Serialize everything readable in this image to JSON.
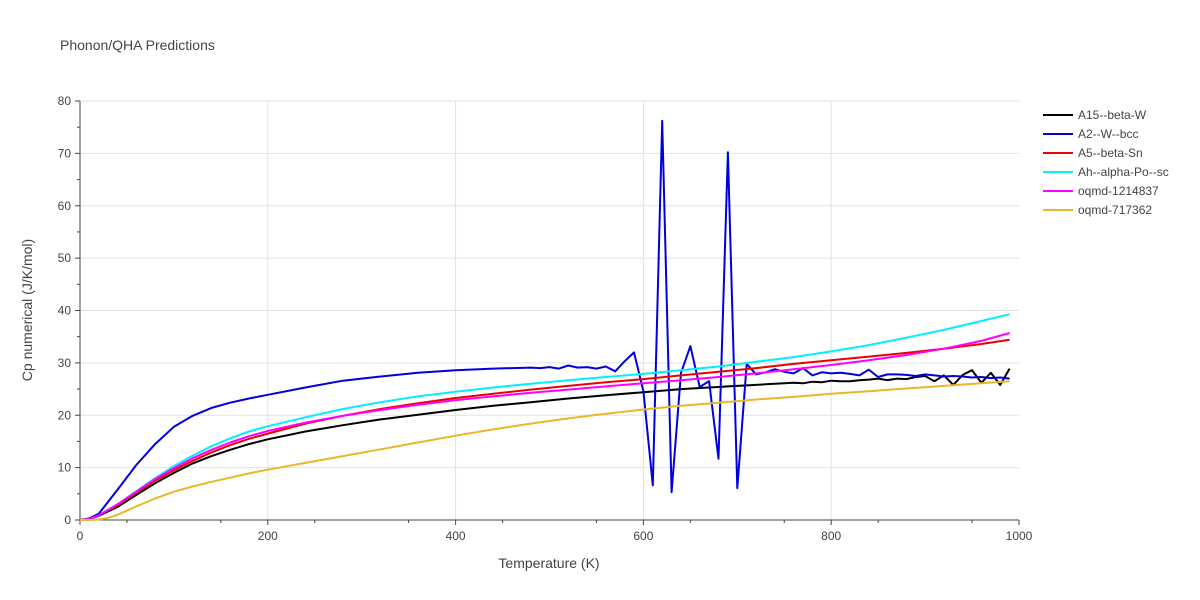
{
  "chart_data": {
    "type": "line",
    "title": "Phonon/QHA Predictions",
    "xlabel": "Temperature (K)",
    "ylabel": "Cp numerical (J/K/mol)",
    "xlim": [
      0,
      1000
    ],
    "ylim": [
      0,
      80
    ],
    "xticks": [
      0,
      200,
      400,
      600,
      800,
      1000
    ],
    "yticks": [
      0,
      10,
      20,
      30,
      40,
      50,
      60,
      70,
      80
    ],
    "grid": true,
    "legend_position": "top-right",
    "series": [
      {
        "name": "A15--beta-W",
        "color": "#000000",
        "x": [
          0,
          10,
          20,
          40,
          60,
          80,
          100,
          120,
          140,
          160,
          180,
          200,
          240,
          280,
          320,
          360,
          400,
          440,
          480,
          520,
          560,
          600,
          640,
          660,
          680,
          690,
          700,
          710,
          720,
          730,
          740,
          750,
          760,
          770,
          780,
          790,
          800,
          810,
          820,
          830,
          840,
          850,
          860,
          870,
          880,
          890,
          900,
          910,
          920,
          930,
          940,
          950,
          960,
          970,
          980,
          990
        ],
        "y": [
          0,
          0.2,
          0.8,
          2.5,
          4.8,
          7.0,
          9.0,
          10.8,
          12.2,
          13.4,
          14.5,
          15.4,
          16.9,
          18.1,
          19.2,
          20.1,
          21.0,
          21.8,
          22.5,
          23.2,
          23.8,
          24.4,
          25.0,
          25.2,
          25.4,
          25.5,
          25.6,
          25.7,
          25.8,
          25.9,
          26.0,
          26.1,
          26.2,
          26.1,
          26.4,
          26.3,
          26.6,
          26.5,
          26.5,
          26.7,
          26.8,
          27.0,
          26.7,
          27.0,
          26.9,
          27.3,
          27.5,
          26.5,
          27.6,
          25.8,
          27.7,
          28.6,
          26.2,
          28.1,
          25.8,
          28.9
        ]
      },
      {
        "name": "A2--W--bcc",
        "color": "#0000dd",
        "x": [
          0,
          10,
          20,
          40,
          60,
          80,
          100,
          120,
          140,
          160,
          180,
          200,
          240,
          280,
          320,
          360,
          400,
          440,
          480,
          490,
          500,
          510,
          520,
          530,
          540,
          550,
          560,
          570,
          580,
          590,
          600,
          610,
          620,
          630,
          640,
          650,
          660,
          670,
          680,
          690,
          700,
          710,
          720,
          730,
          740,
          750,
          760,
          770,
          780,
          790,
          800,
          810,
          820,
          830,
          840,
          850,
          860,
          870,
          880,
          890,
          900,
          910,
          920,
          930,
          940,
          950,
          960,
          970,
          980,
          990
        ],
        "y": [
          0,
          0.3,
          1.2,
          5.8,
          10.5,
          14.5,
          17.8,
          19.9,
          21.4,
          22.4,
          23.2,
          23.9,
          25.3,
          26.6,
          27.4,
          28.1,
          28.6,
          28.9,
          29.1,
          29.0,
          29.2,
          28.9,
          29.5,
          29.1,
          29.2,
          28.9,
          29.3,
          28.4,
          30.3,
          32.0,
          24.6,
          6.6,
          76.2,
          5.3,
          28.1,
          33.2,
          25.4,
          26.5,
          11.7,
          70.2,
          6.1,
          29.8,
          27.8,
          28.2,
          28.8,
          28.3,
          28.0,
          29.0,
          27.6,
          28.2,
          28.0,
          28.1,
          27.9,
          27.6,
          28.7,
          27.3,
          27.8,
          27.8,
          27.7,
          27.5,
          27.8,
          27.6,
          27.4,
          27.5,
          27.4,
          27.2,
          27.3,
          27.1,
          27.2,
          27.0
        ]
      },
      {
        "name": "A5--beta-Sn",
        "color": "#ee0000",
        "x": [
          0,
          10,
          20,
          40,
          60,
          80,
          100,
          120,
          140,
          160,
          180,
          200,
          240,
          280,
          320,
          360,
          400,
          440,
          480,
          520,
          560,
          600,
          640,
          680,
          720,
          760,
          800,
          840,
          880,
          920,
          960,
          990
        ],
        "y": [
          0,
          0.2,
          0.9,
          2.8,
          5.2,
          7.5,
          9.5,
          11.3,
          12.9,
          14.3,
          15.5,
          16.5,
          18.4,
          19.9,
          21.2,
          22.3,
          23.3,
          24.1,
          24.9,
          25.6,
          26.3,
          26.9,
          27.6,
          28.3,
          29.0,
          29.8,
          30.5,
          31.2,
          31.9,
          32.7,
          33.6,
          34.4
        ]
      },
      {
        "name": "Ah--alpha-Po--sc",
        "color": "#00f0ff",
        "x": [
          0,
          10,
          20,
          40,
          60,
          80,
          100,
          120,
          140,
          160,
          180,
          200,
          240,
          280,
          320,
          360,
          400,
          440,
          480,
          520,
          560,
          600,
          640,
          680,
          720,
          760,
          800,
          840,
          880,
          920,
          960,
          990
        ],
        "y": [
          0,
          0.2,
          0.9,
          3.0,
          5.5,
          8.0,
          10.3,
          12.3,
          14.1,
          15.6,
          16.9,
          17.9,
          19.6,
          21.2,
          22.5,
          23.6,
          24.5,
          25.3,
          26.0,
          26.7,
          27.3,
          27.9,
          28.6,
          29.3,
          30.2,
          31.1,
          32.2,
          33.4,
          34.8,
          36.3,
          38.0,
          39.3
        ]
      },
      {
        "name": "oqmd-1214837",
        "color": "#ff00ff",
        "x": [
          0,
          10,
          20,
          40,
          60,
          80,
          100,
          120,
          140,
          160,
          180,
          200,
          240,
          280,
          320,
          360,
          400,
          440,
          480,
          520,
          560,
          600,
          640,
          680,
          720,
          760,
          800,
          840,
          880,
          920,
          960,
          990
        ],
        "y": [
          0,
          0.2,
          0.9,
          3.0,
          5.4,
          7.8,
          9.9,
          11.8,
          13.4,
          14.8,
          16.0,
          17.0,
          18.6,
          19.9,
          21.0,
          22.0,
          22.9,
          23.6,
          24.3,
          24.9,
          25.5,
          26.1,
          26.7,
          27.3,
          28.0,
          28.8,
          29.6,
          30.5,
          31.5,
          32.7,
          34.2,
          35.7
        ]
      },
      {
        "name": "oqmd-717362",
        "color": "#eab72a",
        "x": [
          0,
          10,
          20,
          30,
          40,
          60,
          80,
          100,
          120,
          140,
          160,
          180,
          200,
          240,
          280,
          320,
          360,
          400,
          440,
          480,
          520,
          560,
          600,
          640,
          680,
          720,
          760,
          800,
          840,
          880,
          920,
          960,
          990
        ],
        "y": [
          0,
          0.0,
          0.1,
          0.4,
          1.0,
          2.6,
          4.1,
          5.4,
          6.4,
          7.3,
          8.1,
          8.9,
          9.6,
          10.9,
          12.2,
          13.5,
          14.8,
          16.1,
          17.3,
          18.4,
          19.4,
          20.3,
          21.1,
          21.8,
          22.4,
          23.0,
          23.5,
          24.1,
          24.6,
          25.1,
          25.6,
          26.1,
          26.5
        ]
      }
    ]
  }
}
